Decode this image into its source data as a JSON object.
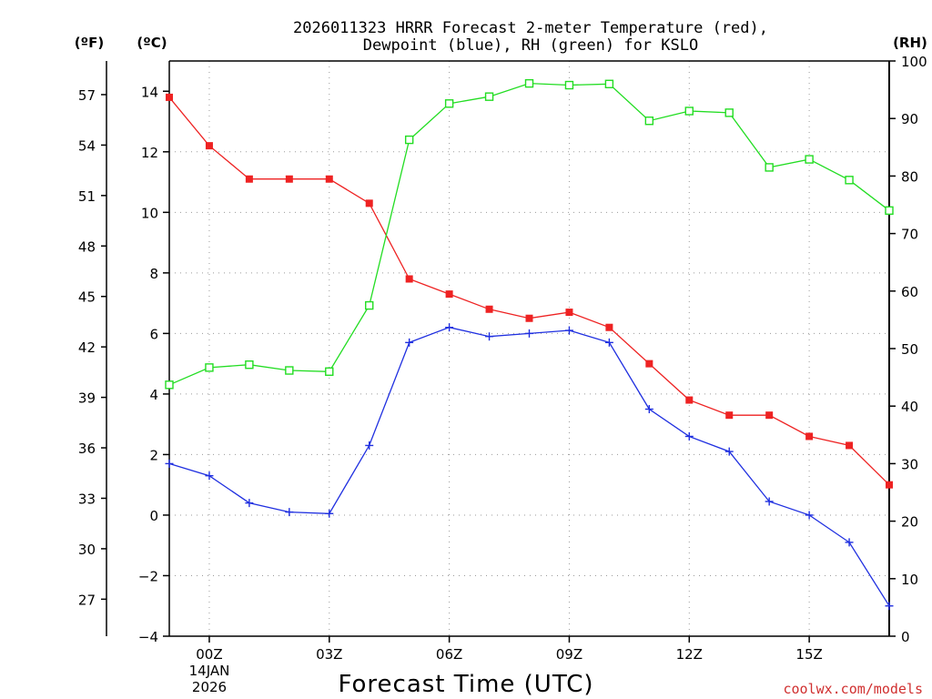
{
  "chart_data": {
    "type": "line",
    "title_line1": "2026011323 HRRR Forecast 2-meter Temperature (red),",
    "title_line2": "Dewpoint (blue), RH (green) for KSLO",
    "xlabel": "Forecast Time (UTC)",
    "x_tick_labels": [
      "00Z",
      "03Z",
      "06Z",
      "09Z",
      "12Z",
      "15Z"
    ],
    "x_date_line1": "14JAN",
    "x_date_line2": "2026",
    "x_hours": [
      -1,
      0,
      1,
      2,
      3,
      4,
      5,
      6,
      7,
      8,
      9,
      10,
      11,
      12,
      13,
      14,
      15,
      16,
      17
    ],
    "xlim": [
      -1,
      17
    ],
    "celsius_axis": {
      "unit_label": "(ºC)",
      "ylim": [
        -4,
        15
      ],
      "ticks": [
        "14",
        "12",
        "10",
        "8",
        "6",
        "4",
        "2",
        "0",
        "−2",
        "−4"
      ]
    },
    "fahrenheit_axis": {
      "unit_label": "(ºF)",
      "ticks": [
        "57",
        "54",
        "51",
        "48",
        "45",
        "42",
        "39",
        "36",
        "33",
        "30",
        "27"
      ]
    },
    "rh_axis": {
      "unit_label": "(RH)",
      "ylim": [
        0,
        100
      ],
      "ticks": [
        "100",
        "90",
        "80",
        "70",
        "60",
        "50",
        "40",
        "30",
        "20",
        "10",
        "0"
      ]
    },
    "series": [
      {
        "name": "Temperature (red)",
        "axis": "C",
        "color": "#ee2222",
        "marker": "filled-square",
        "values": [
          13.8,
          12.2,
          11.1,
          11.1,
          11.1,
          10.3,
          7.8,
          7.3,
          6.8,
          6.5,
          6.7,
          6.2,
          5.0,
          3.8,
          3.3,
          3.3,
          2.6,
          2.3,
          1.0
        ]
      },
      {
        "name": "Dewpoint (blue)",
        "axis": "C",
        "color": "#1f2fe0",
        "marker": "plus",
        "values": [
          1.7,
          1.3,
          0.4,
          0.1,
          0.05,
          2.3,
          5.7,
          6.2,
          5.9,
          6.0,
          6.1,
          5.7,
          3.5,
          2.6,
          2.1,
          0.45,
          0.0,
          -0.9,
          -3.0
        ]
      },
      {
        "name": "RH (green)",
        "axis": "RH",
        "color": "#22dd22",
        "marker": "open-square",
        "values": [
          43.7,
          46.7,
          47.2,
          46.2,
          46.0,
          57.5,
          86.3,
          92.6,
          93.8,
          96.1,
          95.8,
          96.0,
          89.6,
          91.3,
          91.0,
          81.5,
          82.9,
          79.3,
          74.0
        ]
      }
    ],
    "credit": "coolwx.com/models",
    "credit_color": "#d03030"
  }
}
